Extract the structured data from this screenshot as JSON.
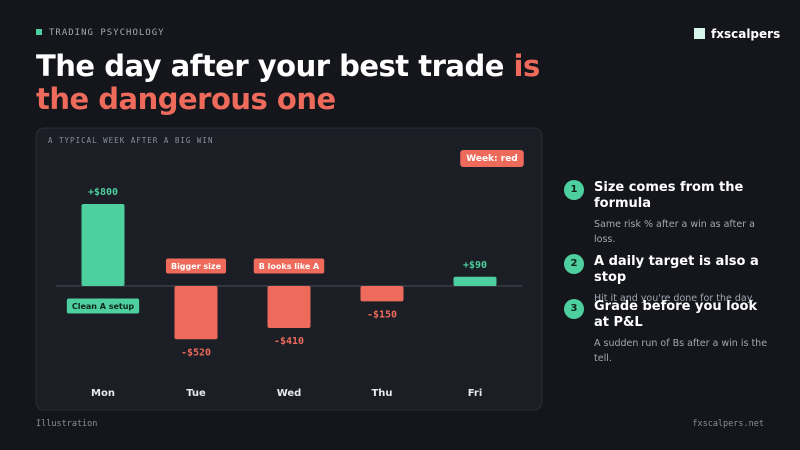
{
  "header": {
    "eyebrow": "TRADING PSYCHOLOGY",
    "brand": "fxscalpers",
    "title_main": "The day after your best trade",
    "title_highlight": "is the dangerous one"
  },
  "chart_data": {
    "type": "bar",
    "subtitle": "A TYPICAL WEEK AFTER A BIG WIN",
    "badge": "Week: red",
    "categories": [
      "Mon",
      "Tue",
      "Wed",
      "Thu",
      "Fri"
    ],
    "values": [
      800,
      -520,
      -410,
      -150,
      90
    ],
    "value_labels": [
      "+$800",
      "-$520",
      "-$410",
      "-$150",
      "+$90"
    ],
    "annotations": [
      "Clean A setup",
      "Bigger size",
      "B looks like A",
      null,
      null
    ],
    "colors": [
      "#4ecf9f",
      "#ee6b5c",
      "#ee6b5c",
      "#ee6b5c",
      "#4ecf9f"
    ]
  },
  "tips": [
    {
      "number": "1",
      "title": "Size comes from the formula",
      "body": "Same risk % after a win as after a loss."
    },
    {
      "number": "2",
      "title": "A daily target is also a stop",
      "body": "Hit it and you're done for the day."
    },
    {
      "number": "3",
      "title": "Grade before you look at P&L",
      "body": "A sudden run of Bs after a win is the tell."
    }
  ],
  "footer": {
    "left": "Illustration",
    "right": "fxscalpers.net"
  }
}
